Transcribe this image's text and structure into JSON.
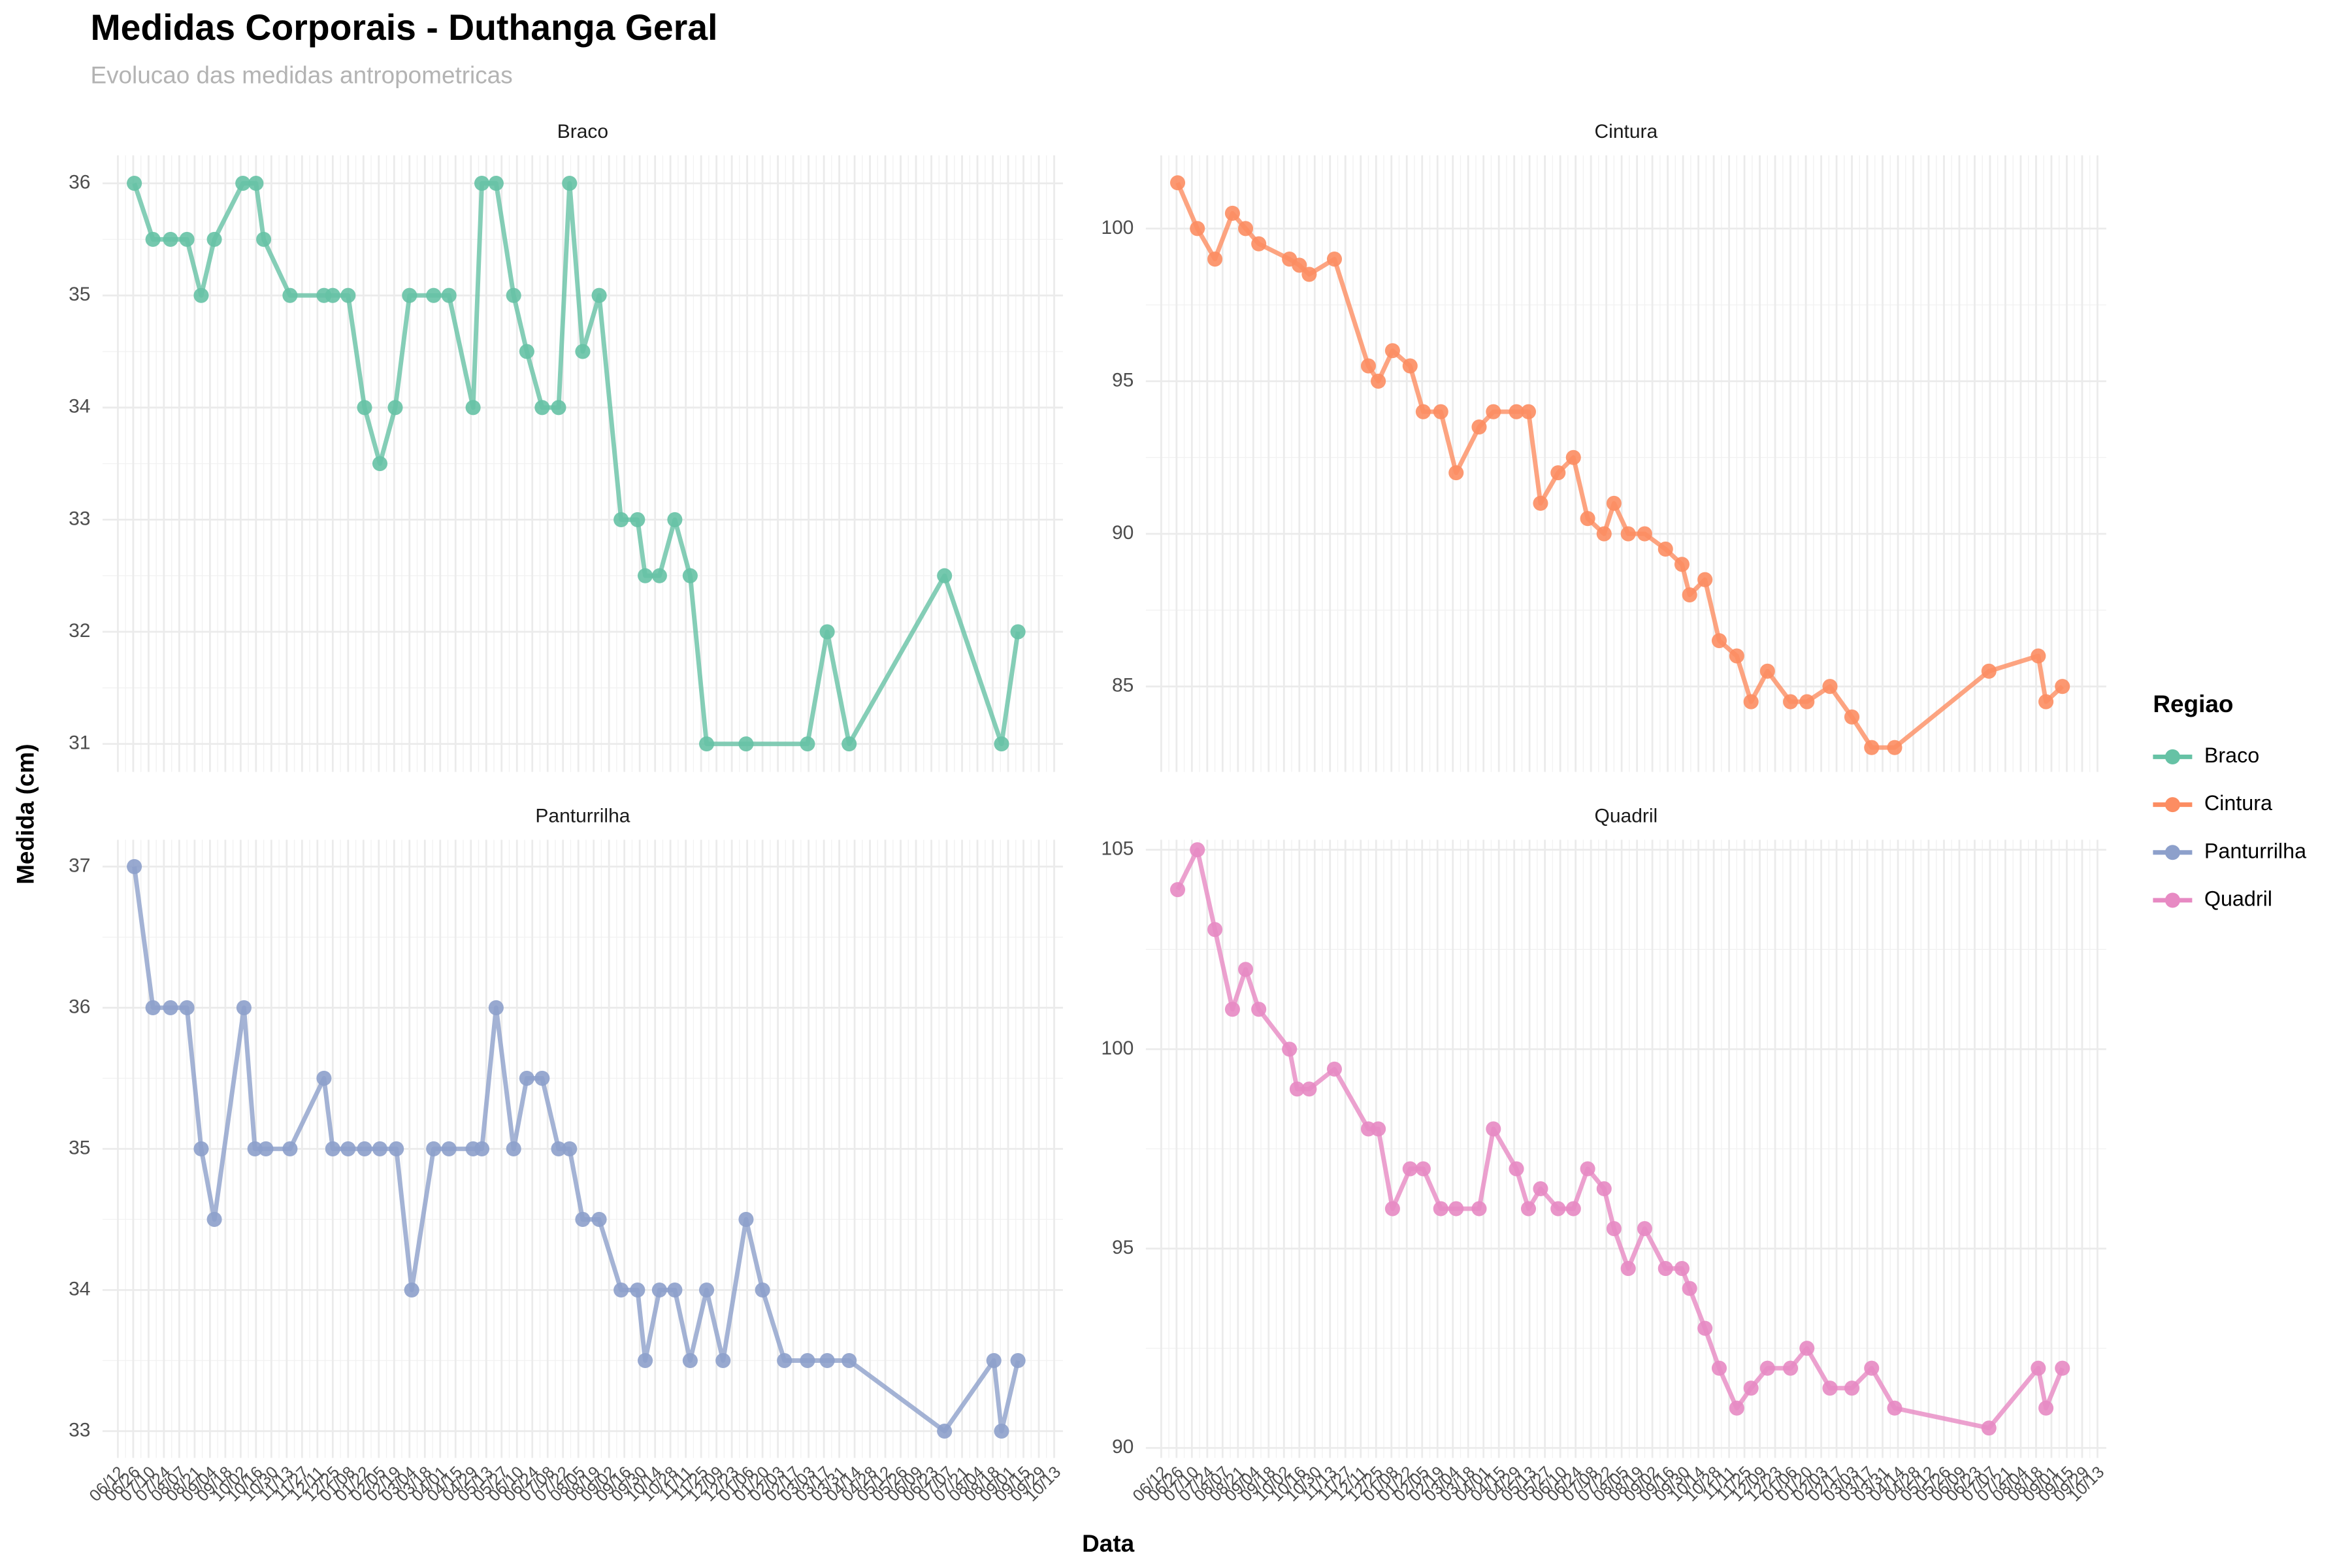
{
  "chart_data": {
    "type": "line",
    "title": "Medidas Corporais - Duthanga Geral",
    "subtitle": "Evolucao das medidas antropometricas",
    "x_label": "Data",
    "y_label": "Medida (cm)",
    "legend_title": "Regiao",
    "grid": true,
    "xlim": [
      -14,
      862
    ],
    "xticks": [
      {
        "value": 0,
        "label": "06/12"
      },
      {
        "value": 14,
        "label": "06/26"
      },
      {
        "value": 28,
        "label": "07/10"
      },
      {
        "value": 42,
        "label": "07/24"
      },
      {
        "value": 56,
        "label": "08/07"
      },
      {
        "value": 70,
        "label": "08/21"
      },
      {
        "value": 84,
        "label": "09/04"
      },
      {
        "value": 98,
        "label": "09/18"
      },
      {
        "value": 112,
        "label": "10/02"
      },
      {
        "value": 126,
        "label": "10/16"
      },
      {
        "value": 140,
        "label": "10/30"
      },
      {
        "value": 154,
        "label": "11/13"
      },
      {
        "value": 168,
        "label": "11/27"
      },
      {
        "value": 182,
        "label": "12/11"
      },
      {
        "value": 196,
        "label": "12/25"
      },
      {
        "value": 210,
        "label": "01/08"
      },
      {
        "value": 224,
        "label": "01/22"
      },
      {
        "value": 238,
        "label": "02/05"
      },
      {
        "value": 252,
        "label": "02/19"
      },
      {
        "value": 266,
        "label": "03/04"
      },
      {
        "value": 280,
        "label": "03/18"
      },
      {
        "value": 294,
        "label": "04/01"
      },
      {
        "value": 308,
        "label": "04/15"
      },
      {
        "value": 322,
        "label": "04/29"
      },
      {
        "value": 336,
        "label": "05/13"
      },
      {
        "value": 350,
        "label": "05/27"
      },
      {
        "value": 364,
        "label": "06/10"
      },
      {
        "value": 378,
        "label": "06/24"
      },
      {
        "value": 392,
        "label": "07/08"
      },
      {
        "value": 406,
        "label": "07/22"
      },
      {
        "value": 420,
        "label": "08/05"
      },
      {
        "value": 434,
        "label": "08/19"
      },
      {
        "value": 448,
        "label": "09/02"
      },
      {
        "value": 462,
        "label": "09/16"
      },
      {
        "value": 476,
        "label": "09/30"
      },
      {
        "value": 490,
        "label": "10/14"
      },
      {
        "value": 504,
        "label": "10/28"
      },
      {
        "value": 518,
        "label": "11/11"
      },
      {
        "value": 532,
        "label": "11/25"
      },
      {
        "value": 546,
        "label": "12/09"
      },
      {
        "value": 560,
        "label": "12/23"
      },
      {
        "value": 574,
        "label": "01/06"
      },
      {
        "value": 588,
        "label": "01/20"
      },
      {
        "value": 602,
        "label": "02/03"
      },
      {
        "value": 616,
        "label": "02/17"
      },
      {
        "value": 630,
        "label": "03/03"
      },
      {
        "value": 644,
        "label": "03/17"
      },
      {
        "value": 658,
        "label": "03/31"
      },
      {
        "value": 672,
        "label": "04/14"
      },
      {
        "value": 686,
        "label": "04/28"
      },
      {
        "value": 700,
        "label": "05/12"
      },
      {
        "value": 714,
        "label": "05/26"
      },
      {
        "value": 728,
        "label": "06/09"
      },
      {
        "value": 742,
        "label": "06/23"
      },
      {
        "value": 756,
        "label": "07/07"
      },
      {
        "value": 770,
        "label": "07/21"
      },
      {
        "value": 784,
        "label": "08/04"
      },
      {
        "value": 798,
        "label": "08/18"
      },
      {
        "value": 812,
        "label": "09/01"
      },
      {
        "value": 826,
        "label": "09/15"
      },
      {
        "value": 840,
        "label": "09/29"
      },
      {
        "value": 854,
        "label": "10/13"
      }
    ],
    "series": [
      {
        "name": "Braco",
        "color": "#66c2a5",
        "ylim": [
          30.75,
          36.25
        ],
        "yticks": [
          31,
          32,
          33,
          34,
          35,
          36
        ],
        "x": [
          15,
          32,
          48,
          63,
          76,
          88,
          114,
          126,
          133,
          157,
          188,
          196,
          210,
          225,
          239,
          253,
          266,
          288,
          302,
          324,
          332,
          345,
          361,
          373,
          387,
          402,
          412,
          424,
          439,
          459,
          474,
          481,
          494,
          508,
          522,
          537,
          573,
          629,
          647,
          667,
          754,
          806,
          821
        ],
        "values": [
          36,
          35.5,
          35.5,
          35.5,
          35,
          35.5,
          36,
          36,
          35.5,
          35,
          35,
          35,
          35,
          34,
          33.5,
          34,
          35,
          35,
          35,
          34,
          36,
          36,
          35,
          34.5,
          34,
          34,
          36,
          34.5,
          35,
          33,
          33,
          32.5,
          32.5,
          33,
          32.5,
          31,
          31,
          31,
          32,
          31,
          32.5,
          31,
          32
        ]
      },
      {
        "name": "Cintura",
        "color": "#fc8d62",
        "ylim": [
          82.2,
          102.4
        ],
        "yticks": [
          85,
          90,
          95,
          100
        ],
        "x": [
          15,
          33,
          49,
          65,
          77,
          89,
          117,
          126,
          135,
          158,
          189,
          198,
          211,
          227,
          239,
          255,
          269,
          290,
          303,
          324,
          335,
          346,
          362,
          376,
          389,
          404,
          413,
          426,
          441,
          460,
          475,
          482,
          496,
          509,
          525,
          538,
          553,
          574,
          589,
          610,
          630,
          648,
          669,
          755,
          800,
          807,
          822
        ],
        "values": [
          101.5,
          100,
          99,
          100.5,
          100,
          99.5,
          99,
          98.8,
          98.5,
          99,
          95.5,
          95,
          96,
          95.5,
          94,
          94,
          92,
          93.5,
          94,
          94,
          94,
          91,
          92,
          92.5,
          90.5,
          90,
          91,
          90,
          90,
          89.5,
          89,
          88,
          88.5,
          86.5,
          86,
          84.5,
          85.5,
          84.5,
          84.5,
          85,
          84,
          83,
          83,
          85.5,
          86,
          84.5,
          85
        ]
      },
      {
        "name": "Panturrilha",
        "color": "#8da0cb",
        "ylim": [
          32.81,
          37.19
        ],
        "yticks": [
          33,
          34,
          35,
          36,
          37
        ],
        "x": [
          15,
          32,
          48,
          63,
          76,
          88,
          115,
          125,
          135,
          157,
          188,
          196,
          210,
          225,
          239,
          254,
          268,
          288,
          302,
          324,
          332,
          345,
          361,
          373,
          387,
          402,
          412,
          424,
          439,
          459,
          474,
          481,
          494,
          508,
          522,
          537,
          552,
          573,
          588,
          608,
          629,
          647,
          667,
          754,
          799,
          806,
          821
        ],
        "values": [
          37,
          36,
          36,
          36,
          35,
          34.5,
          36,
          35,
          35,
          35,
          35.5,
          35,
          35,
          35,
          35,
          35,
          34,
          35,
          35,
          35,
          35,
          36,
          35,
          35.5,
          35.5,
          35,
          35,
          34.5,
          34.5,
          34,
          34,
          33.5,
          34,
          34,
          33.5,
          34,
          33.5,
          34.5,
          34,
          33.5,
          33.5,
          33.5,
          33.5,
          33,
          33.5,
          33,
          33.5
        ]
      },
      {
        "name": "Quadril",
        "color": "#e78ac3",
        "ylim": [
          89.75,
          105.25
        ],
        "yticks": [
          90,
          95,
          100,
          105
        ],
        "x": [
          15,
          33,
          49,
          65,
          77,
          89,
          117,
          124,
          135,
          158,
          189,
          198,
          211,
          227,
          239,
          255,
          269,
          290,
          303,
          324,
          335,
          346,
          362,
          376,
          389,
          404,
          413,
          426,
          441,
          460,
          475,
          482,
          496,
          509,
          525,
          538,
          553,
          574,
          589,
          610,
          630,
          648,
          669,
          755,
          800,
          807,
          822
        ],
        "values": [
          104,
          105,
          103,
          101,
          102,
          101,
          100,
          99,
          99,
          99.5,
          98,
          98,
          96,
          97,
          97,
          96,
          96,
          96,
          98,
          97,
          96,
          96.5,
          96,
          96,
          97,
          96.5,
          95.5,
          94.5,
          95.5,
          94.5,
          94.5,
          94,
          93,
          92,
          91,
          91.5,
          92,
          92,
          92.5,
          91.5,
          91.5,
          92,
          91,
          90.5,
          92,
          91,
          92
        ]
      }
    ]
  }
}
